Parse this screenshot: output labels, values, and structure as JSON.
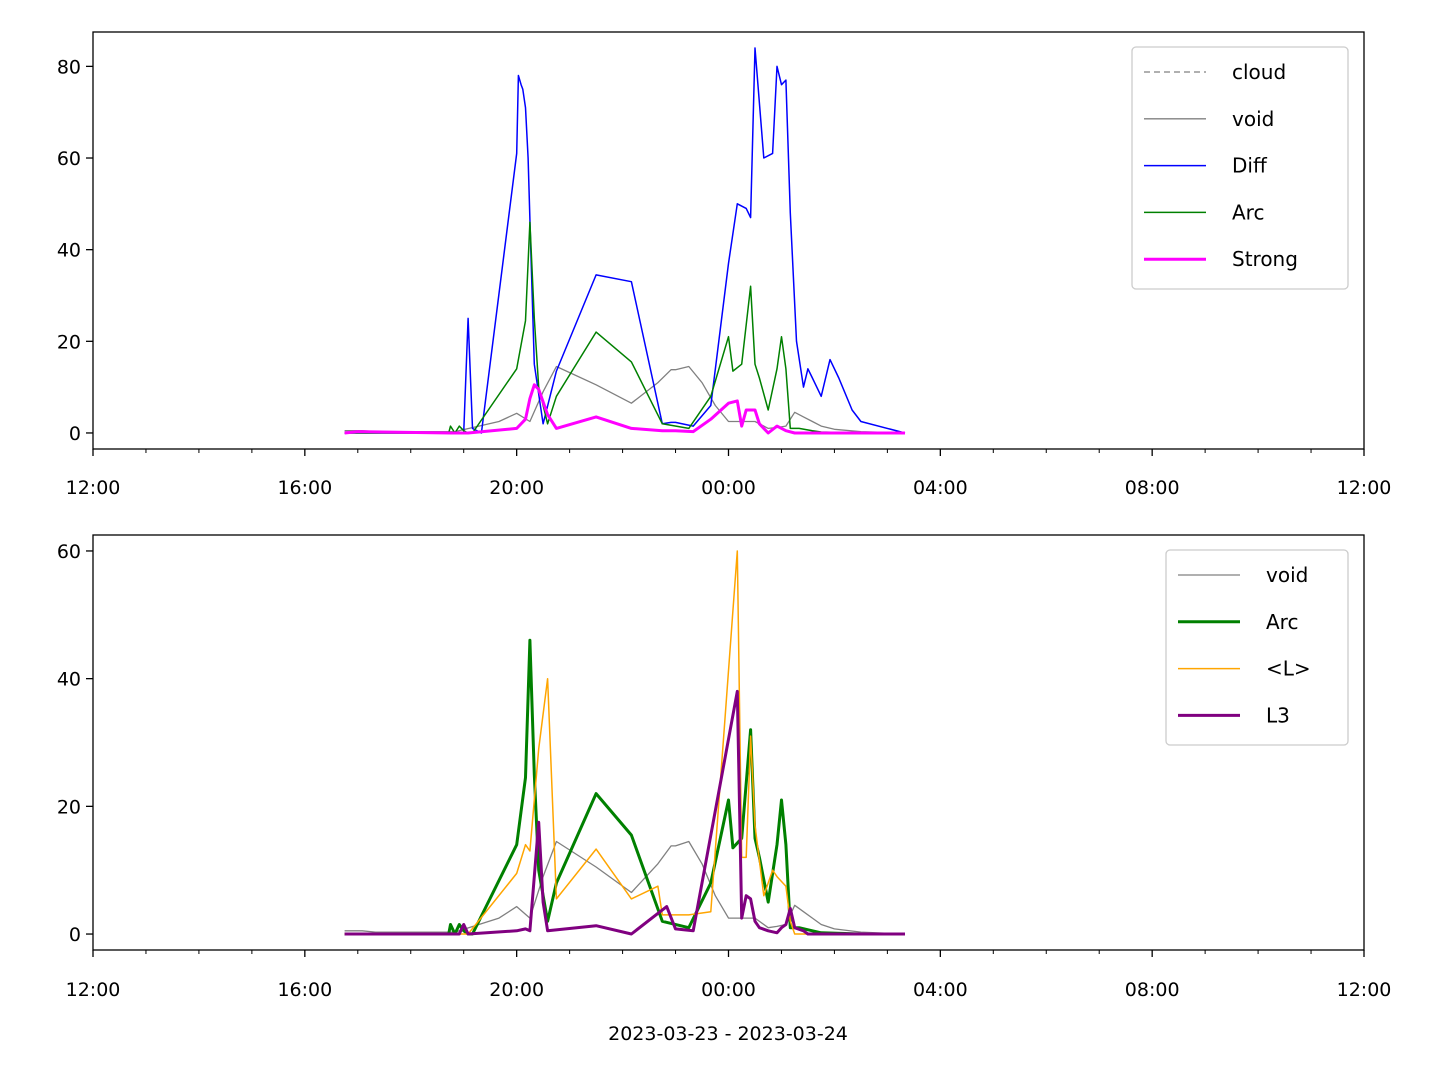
{
  "xlabel": "2023-03-23 - 2023-03-24",
  "chart_data": [
    {
      "type": "line",
      "x_ticks": [
        "12:00",
        "16:00",
        "20:00",
        "00:00",
        "04:00",
        "08:00",
        "12:00"
      ],
      "x_range": [
        "2023-03-23 12:00",
        "2023-03-24 12:00"
      ],
      "ylim": [
        -3.5,
        87.5
      ],
      "y_ticks": [
        0,
        20,
        40,
        60,
        80
      ],
      "legend_position": "top-right",
      "series": [
        {
          "name": "cloud",
          "color": "#808080",
          "style": "dashed",
          "width": 1.2,
          "x": [],
          "y": []
        },
        {
          "name": "void",
          "color": "#808080",
          "style": "solid",
          "width": 1.3,
          "x": [
            "16:45",
            "17:05",
            "17:20",
            "18:50",
            "19:40",
            "20:00",
            "20:15",
            "20:30",
            "20:45",
            "21:30",
            "22:10",
            "22:40",
            "22:55",
            "23:00",
            "23:15",
            "23:30",
            "23:45",
            "24:00",
            "24:15",
            "24:30",
            "24:45",
            "24:55",
            "25:05",
            "25:15",
            "25:25",
            "25:35",
            "25:45",
            "26:00",
            "26:30",
            "27:20"
          ],
          "y": [
            0.5,
            0.5,
            0.3,
            0.3,
            2.5,
            4.3,
            2.5,
            9,
            14.5,
            10.5,
            6.5,
            11,
            13.8,
            13.8,
            14.5,
            11,
            6,
            2.5,
            2.5,
            2.5,
            1,
            1.2,
            1.5,
            4.5,
            3.5,
            2.5,
            1.5,
            0.8,
            0.3,
            0
          ]
        },
        {
          "name": "Diff",
          "color": "#0000ff",
          "style": "solid",
          "width": 1.5,
          "x": [
            "16:45",
            "18:55",
            "19:00",
            "19:05",
            "19:10",
            "19:20",
            "20:00",
            "20:02",
            "20:05",
            "20:07",
            "20:10",
            "20:13",
            "20:16",
            "20:20",
            "20:30",
            "20:45",
            "21:30",
            "22:10",
            "22:45",
            "22:55",
            "23:00",
            "23:20",
            "23:40",
            "24:00",
            "24:10",
            "24:20",
            "24:25",
            "24:30",
            "24:40",
            "24:50",
            "24:55",
            "25:00",
            "25:05",
            "25:10",
            "25:17",
            "25:25",
            "25:30",
            "25:35",
            "25:45",
            "25:55",
            "26:05",
            "26:20",
            "26:30",
            "27:20"
          ],
          "y": [
            0,
            0,
            0,
            25,
            1,
            0,
            61,
            78,
            76,
            75,
            71,
            60,
            40,
            15,
            2,
            13.5,
            34.5,
            33,
            2,
            2.3,
            2.3,
            1.5,
            6,
            37,
            50,
            49,
            47,
            84,
            60,
            61,
            80,
            76,
            77,
            48,
            20,
            10,
            14,
            12,
            8,
            16,
            12,
            5,
            2.5,
            0
          ]
        },
        {
          "name": "Arc",
          "color": "#008000",
          "style": "solid",
          "width": 1.5,
          "x": [
            "16:45",
            "18:43",
            "18:45",
            "18:50",
            "18:55",
            "19:00",
            "19:05",
            "19:10",
            "20:00",
            "20:10",
            "20:15",
            "20:20",
            "20:25",
            "20:35",
            "20:45",
            "21:30",
            "22:10",
            "22:45",
            "23:15",
            "23:40",
            "24:00",
            "24:05",
            "24:15",
            "24:25",
            "24:30",
            "24:35",
            "24:45",
            "24:55",
            "25:00",
            "25:05",
            "25:10",
            "25:15",
            "25:20",
            "25:35",
            "25:45",
            "26:30",
            "27:20"
          ],
          "y": [
            0,
            0,
            1.5,
            0,
            1.5,
            0.5,
            0,
            0,
            14,
            24.5,
            46,
            25,
            10,
            2,
            8,
            22,
            15.5,
            2,
            1,
            8,
            21,
            13.5,
            15,
            32,
            15,
            12,
            5,
            14,
            21,
            14,
            1,
            1,
            1,
            0.5,
            0.2,
            0,
            0
          ]
        },
        {
          "name": "Strong",
          "color": "#ff00ff",
          "style": "solid",
          "width": 3.0,
          "x": [
            "16:45",
            "17:00",
            "18:45",
            "19:05",
            "20:00",
            "20:10",
            "20:15",
            "20:20",
            "20:25",
            "20:35",
            "20:45",
            "21:30",
            "22:10",
            "22:45",
            "23:00",
            "23:20",
            "23:40",
            "24:00",
            "24:10",
            "24:15",
            "24:20",
            "24:30",
            "24:35",
            "24:45",
            "24:55",
            "25:05",
            "25:15",
            "25:25",
            "25:40",
            "27:20"
          ],
          "y": [
            0,
            0.3,
            0,
            0,
            1,
            3,
            7.5,
            10.5,
            9.5,
            4,
            1,
            3.5,
            1,
            0.5,
            0.5,
            0.3,
            3,
            6.5,
            7,
            1.5,
            5,
            5,
            2,
            0,
            1.5,
            0.5,
            0,
            0,
            0,
            0
          ]
        }
      ]
    },
    {
      "type": "line",
      "x_ticks": [
        "12:00",
        "16:00",
        "20:00",
        "00:00",
        "04:00",
        "08:00",
        "12:00"
      ],
      "x_range": [
        "2023-03-23 12:00",
        "2023-03-24 12:00"
      ],
      "ylim": [
        -2.5,
        62.5
      ],
      "y_ticks": [
        0,
        20,
        40,
        60
      ],
      "legend_position": "top-right",
      "series": [
        {
          "name": "void",
          "color": "#808080",
          "style": "solid",
          "width": 1.3,
          "x": [
            "16:45",
            "17:05",
            "17:20",
            "18:50",
            "19:40",
            "20:00",
            "20:15",
            "20:30",
            "20:45",
            "21:30",
            "22:10",
            "22:40",
            "22:55",
            "23:00",
            "23:15",
            "23:30",
            "23:45",
            "24:00",
            "24:15",
            "24:30",
            "24:45",
            "24:55",
            "25:05",
            "25:15",
            "25:25",
            "25:35",
            "25:45",
            "26:00",
            "26:30",
            "27:20"
          ],
          "y": [
            0.5,
            0.5,
            0.3,
            0.3,
            2.5,
            4.3,
            2.5,
            9,
            14.5,
            10.5,
            6.5,
            11,
            13.8,
            13.8,
            14.5,
            11,
            6,
            2.5,
            2.5,
            2.5,
            1,
            1.2,
            1.5,
            4.5,
            3.5,
            2.5,
            1.5,
            0.8,
            0.3,
            0
          ]
        },
        {
          "name": "Arc",
          "color": "#008000",
          "style": "solid",
          "width": 3.0,
          "x": [
            "16:45",
            "18:43",
            "18:45",
            "18:50",
            "18:55",
            "19:00",
            "19:05",
            "19:10",
            "20:00",
            "20:10",
            "20:15",
            "20:20",
            "20:25",
            "20:35",
            "20:45",
            "21:30",
            "22:10",
            "22:45",
            "23:15",
            "23:40",
            "24:00",
            "24:05",
            "24:15",
            "24:25",
            "24:30",
            "24:35",
            "24:45",
            "24:55",
            "25:00",
            "25:05",
            "25:10",
            "25:15",
            "25:20",
            "25:35",
            "25:45",
            "26:30",
            "27:20"
          ],
          "y": [
            0,
            0,
            1.5,
            0,
            1.5,
            0.5,
            0,
            0,
            14,
            24.5,
            46,
            25,
            10,
            2,
            8,
            22,
            15.5,
            2,
            1,
            8,
            21,
            13.5,
            15,
            32,
            15,
            12,
            5,
            14,
            21,
            14,
            1,
            1,
            1,
            0.5,
            0.2,
            0,
            0
          ]
        },
        {
          "name": "<L>",
          "color": "#ffa500",
          "style": "solid",
          "width": 1.5,
          "x": [
            "16:45",
            "19:05",
            "20:00",
            "20:10",
            "20:15",
            "20:25",
            "20:35",
            "20:45",
            "21:30",
            "22:10",
            "22:40",
            "22:45",
            "23:15",
            "23:40",
            "24:10",
            "24:15",
            "24:20",
            "24:25",
            "24:30",
            "24:40",
            "24:50",
            "24:55",
            "25:05",
            "25:10",
            "25:15",
            "27:20"
          ],
          "y": [
            0,
            0,
            9.5,
            14,
            13,
            29,
            40,
            5.5,
            13.3,
            5.5,
            7.5,
            3,
            3,
            3.5,
            60,
            12,
            12,
            31,
            17,
            6,
            10,
            9,
            7.5,
            2,
            0,
            0
          ]
        },
        {
          "name": "L3",
          "color": "#800080",
          "style": "solid",
          "width": 3.0,
          "x": [
            "16:45",
            "18:50",
            "18:55",
            "19:00",
            "19:05",
            "20:00",
            "20:10",
            "20:15",
            "20:25",
            "20:30",
            "20:35",
            "21:30",
            "22:10",
            "22:50",
            "23:00",
            "23:20",
            "24:10",
            "24:15",
            "24:20",
            "24:25",
            "24:30",
            "24:35",
            "24:45",
            "24:55",
            "25:00",
            "25:05",
            "25:10",
            "25:15",
            "25:25",
            "25:30",
            "27:20"
          ],
          "y": [
            0,
            0,
            0,
            1.5,
            0,
            0.5,
            0.8,
            0.5,
            17.5,
            5,
            0.5,
            1.3,
            0,
            4.3,
            0.8,
            0.5,
            38,
            2.5,
            6,
            5.5,
            2,
            1,
            0.5,
            0.2,
            1,
            1.5,
            4,
            1,
            0.5,
            0,
            0
          ]
        }
      ]
    }
  ]
}
